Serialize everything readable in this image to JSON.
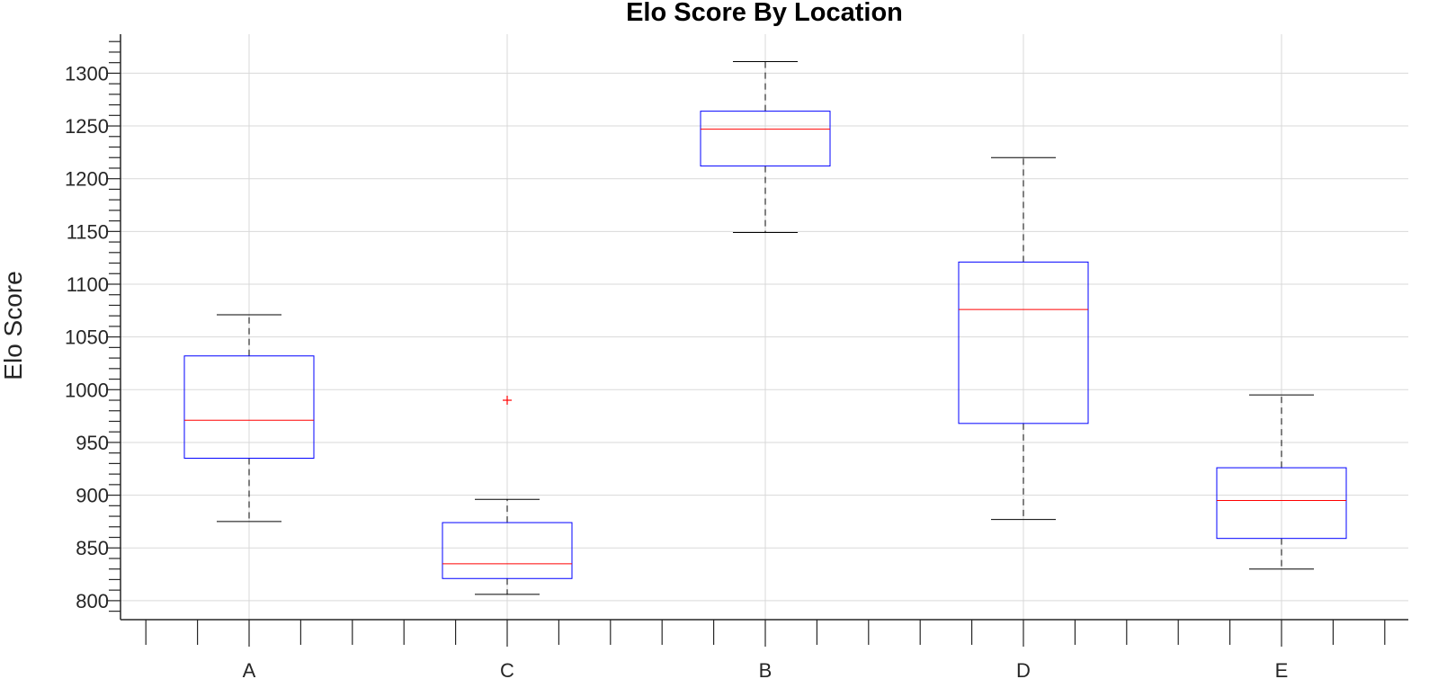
{
  "chart_data": {
    "type": "box",
    "title": "Elo Score By Location",
    "xlabel": "",
    "ylabel": "Elo Score",
    "ylim": [
      782,
      1337
    ],
    "yticks": [
      800,
      850,
      900,
      950,
      1000,
      1050,
      1100,
      1150,
      1200,
      1250,
      1300
    ],
    "ytick_labels": [
      "800",
      "850",
      "900",
      "950",
      "1000",
      "1050",
      "1100",
      "1150",
      "1200",
      "1250",
      "1300"
    ],
    "minor_tick_step": 10,
    "grid": true,
    "categories": [
      "A",
      "C",
      "B",
      "D",
      "E"
    ],
    "boxes": [
      {
        "category": "A",
        "whisker_low": 875,
        "q1": 935,
        "median": 971,
        "q3": 1032,
        "whisker_high": 1071,
        "outliers": []
      },
      {
        "category": "C",
        "whisker_low": 806,
        "q1": 821,
        "median": 835,
        "q3": 874,
        "whisker_high": 896,
        "outliers": [
          990
        ]
      },
      {
        "category": "B",
        "whisker_low": 1149,
        "q1": 1212,
        "median": 1247,
        "q3": 1264,
        "whisker_high": 1311,
        "outliers": []
      },
      {
        "category": "D",
        "whisker_low": 877,
        "q1": 968,
        "median": 1076,
        "q3": 1121,
        "whisker_high": 1220,
        "outliers": []
      },
      {
        "category": "E",
        "whisker_low": 830,
        "q1": 859,
        "median": 895,
        "q3": 926,
        "whisker_high": 995,
        "outliers": []
      }
    ],
    "colors": {
      "box": "#0000ff",
      "median": "#ff0000",
      "outlier": "#ff0000",
      "whisker": "#000000",
      "axis": "#262626",
      "grid": "#d9d9d9"
    }
  }
}
